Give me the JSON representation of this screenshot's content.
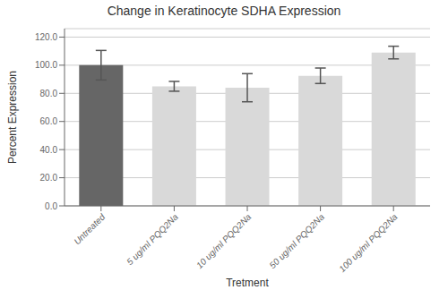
{
  "chart_data": {
    "type": "bar",
    "title": "Change in Keratinocyte SDHA Expression",
    "xlabel": "Tretment",
    "ylabel": "Percent Expression",
    "categories": [
      "Untreated",
      "5 ug/ml PQQ2Na",
      "10 ug/ml PQQ2Na",
      "50 ug/ml PQQ2Na",
      "100 ug/ml PQQ2Na"
    ],
    "values": [
      100.0,
      85.0,
      84.0,
      92.5,
      109.0
    ],
    "errors": [
      10.5,
      3.5,
      10.0,
      5.5,
      4.5
    ],
    "colors": [
      "#666666",
      "#d9d9d9",
      "#d9d9d9",
      "#d9d9d9",
      "#d9d9d9"
    ],
    "ylim": [
      0,
      126
    ],
    "yticks": [
      {
        "value": 0,
        "label": "0.0"
      },
      {
        "value": 20,
        "label": "20.0"
      },
      {
        "value": 40,
        "label": "40.0"
      },
      {
        "value": 60,
        "label": "60.0"
      },
      {
        "value": 80,
        "label": "80.0"
      },
      {
        "value": 100,
        "label": "100.0"
      },
      {
        "value": 120,
        "label": "120.0"
      }
    ],
    "grid": true
  }
}
